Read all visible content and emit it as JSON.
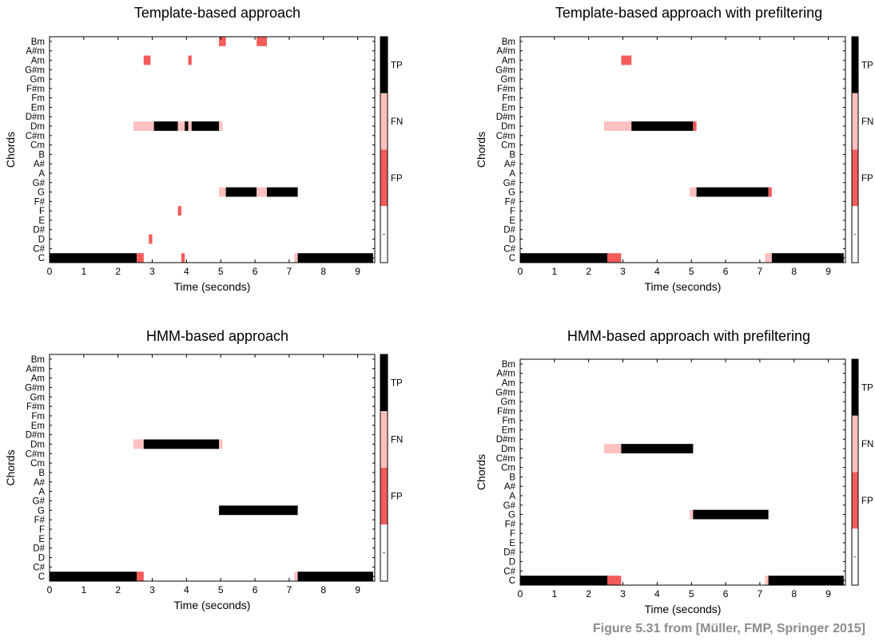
{
  "caption": "Figure 5.31 from [Müller, FMP, Springer 2015]",
  "legend_colors": {
    "TP": "#000000",
    "FN": "#ffc0c0",
    "FP": "#f45b5b",
    "none": "#ffffff"
  },
  "legend_labels": [
    "TP",
    "FN",
    "FP"
  ],
  "chart_data": [
    {
      "type": "heatmap",
      "title": "Template-based approach",
      "xlabel": "Time (seconds)",
      "ylabel": "Chords",
      "xlim": [
        0,
        9.5
      ],
      "xticks": [
        "0",
        "1",
        "2",
        "3",
        "4",
        "5",
        "6",
        "7",
        "8",
        "9"
      ],
      "chords": [
        "C",
        "C#",
        "D",
        "D#",
        "E",
        "F",
        "F#",
        "G",
        "G#",
        "A",
        "A#",
        "B",
        "Cm",
        "C#m",
        "Dm",
        "D#m",
        "Em",
        "Fm",
        "F#m",
        "Gm",
        "G#m",
        "Am",
        "A#m",
        "Bm"
      ],
      "segments": [
        {
          "chord": "C",
          "start": 0.0,
          "end": 2.55,
          "label": "TP"
        },
        {
          "chord": "C",
          "start": 2.55,
          "end": 2.75,
          "label": "FN"
        },
        {
          "chord": "C",
          "start": 2.55,
          "end": 2.75,
          "label": "FP"
        },
        {
          "chord": "C",
          "start": 3.85,
          "end": 3.95,
          "label": "FP"
        },
        {
          "chord": "C",
          "start": 7.15,
          "end": 7.25,
          "label": "FN"
        },
        {
          "chord": "C",
          "start": 7.25,
          "end": 9.45,
          "label": "TP"
        },
        {
          "chord": "D",
          "start": 2.9,
          "end": 3.0,
          "label": "FP"
        },
        {
          "chord": "F",
          "start": 3.75,
          "end": 3.85,
          "label": "FP"
        },
        {
          "chord": "G",
          "start": 4.95,
          "end": 5.15,
          "label": "FN"
        },
        {
          "chord": "G",
          "start": 5.15,
          "end": 6.05,
          "label": "TP"
        },
        {
          "chord": "G",
          "start": 6.05,
          "end": 6.35,
          "label": "FN"
        },
        {
          "chord": "G",
          "start": 6.35,
          "end": 7.25,
          "label": "TP"
        },
        {
          "chord": "Dm",
          "start": 2.45,
          "end": 3.05,
          "label": "FN"
        },
        {
          "chord": "Dm",
          "start": 3.05,
          "end": 3.75,
          "label": "TP"
        },
        {
          "chord": "Dm",
          "start": 3.75,
          "end": 3.95,
          "label": "FN"
        },
        {
          "chord": "Dm",
          "start": 3.95,
          "end": 4.05,
          "label": "TP"
        },
        {
          "chord": "Dm",
          "start": 4.05,
          "end": 4.15,
          "label": "FN"
        },
        {
          "chord": "Dm",
          "start": 4.15,
          "end": 4.95,
          "label": "TP"
        },
        {
          "chord": "Dm",
          "start": 4.95,
          "end": 5.05,
          "label": "FN"
        },
        {
          "chord": "Am",
          "start": 2.75,
          "end": 2.95,
          "label": "FP"
        },
        {
          "chord": "Am",
          "start": 4.05,
          "end": 4.15,
          "label": "FP"
        },
        {
          "chord": "Bm",
          "start": 4.95,
          "end": 5.15,
          "label": "FP"
        },
        {
          "chord": "Bm",
          "start": 6.05,
          "end": 6.35,
          "label": "FP"
        }
      ]
    },
    {
      "type": "heatmap",
      "title": "Template-based approach with prefiltering",
      "xlabel": "Time (seconds)",
      "ylabel": "Chords",
      "xlim": [
        0,
        9.5
      ],
      "xticks": [
        "0",
        "1",
        "2",
        "3",
        "4",
        "5",
        "6",
        "7",
        "8",
        "9"
      ],
      "chords": [
        "C",
        "C#",
        "D",
        "D#",
        "E",
        "F",
        "F#",
        "G",
        "G#",
        "A",
        "A#",
        "B",
        "Cm",
        "C#m",
        "Dm",
        "D#m",
        "Em",
        "Fm",
        "F#m",
        "Gm",
        "G#m",
        "Am",
        "A#m",
        "Bm"
      ],
      "segments": [
        {
          "chord": "C",
          "start": 0.0,
          "end": 2.55,
          "label": "TP"
        },
        {
          "chord": "C",
          "start": 2.55,
          "end": 2.95,
          "label": "FP"
        },
        {
          "chord": "C",
          "start": 7.15,
          "end": 7.35,
          "label": "FN"
        },
        {
          "chord": "C",
          "start": 7.35,
          "end": 9.45,
          "label": "TP"
        },
        {
          "chord": "G",
          "start": 4.95,
          "end": 5.15,
          "label": "FN"
        },
        {
          "chord": "G",
          "start": 5.15,
          "end": 7.25,
          "label": "TP"
        },
        {
          "chord": "G",
          "start": 7.25,
          "end": 7.35,
          "label": "FP"
        },
        {
          "chord": "Dm",
          "start": 2.45,
          "end": 3.25,
          "label": "FN"
        },
        {
          "chord": "Dm",
          "start": 3.25,
          "end": 5.05,
          "label": "TP"
        },
        {
          "chord": "Dm",
          "start": 5.05,
          "end": 5.15,
          "label": "FP"
        },
        {
          "chord": "Am",
          "start": 2.95,
          "end": 3.25,
          "label": "FP"
        }
      ]
    },
    {
      "type": "heatmap",
      "title": "HMM-based approach",
      "xlabel": "Time (seconds)",
      "ylabel": "Chords",
      "xlim": [
        0,
        9.5
      ],
      "xticks": [
        "0",
        "1",
        "2",
        "3",
        "4",
        "5",
        "6",
        "7",
        "8",
        "9"
      ],
      "chords": [
        "C",
        "C#",
        "D",
        "D#",
        "E",
        "F",
        "F#",
        "G",
        "G#",
        "A",
        "A#",
        "B",
        "Cm",
        "C#m",
        "Dm",
        "D#m",
        "Em",
        "Fm",
        "F#m",
        "Gm",
        "G#m",
        "Am",
        "A#m",
        "Bm"
      ],
      "segments": [
        {
          "chord": "C",
          "start": 0.0,
          "end": 2.55,
          "label": "TP"
        },
        {
          "chord": "C",
          "start": 2.55,
          "end": 2.75,
          "label": "FP"
        },
        {
          "chord": "C",
          "start": 7.15,
          "end": 7.25,
          "label": "FN"
        },
        {
          "chord": "C",
          "start": 7.25,
          "end": 9.45,
          "label": "TP"
        },
        {
          "chord": "G",
          "start": 4.95,
          "end": 7.25,
          "label": "TP"
        },
        {
          "chord": "Dm",
          "start": 2.45,
          "end": 2.75,
          "label": "FN"
        },
        {
          "chord": "Dm",
          "start": 2.75,
          "end": 4.95,
          "label": "TP"
        },
        {
          "chord": "Dm",
          "start": 4.95,
          "end": 5.05,
          "label": "FN"
        }
      ]
    },
    {
      "type": "heatmap",
      "title": "HMM-based approach with prefiltering",
      "xlabel": "Time (seconds)",
      "ylabel": "Chords",
      "xlim": [
        0,
        9.5
      ],
      "xticks": [
        "0",
        "1",
        "2",
        "3",
        "4",
        "5",
        "6",
        "7",
        "8",
        "9"
      ],
      "chords": [
        "C",
        "C#",
        "D",
        "D#",
        "E",
        "F",
        "F#",
        "G",
        "G#",
        "A",
        "A#",
        "B",
        "Cm",
        "C#m",
        "Dm",
        "D#m",
        "Em",
        "Fm",
        "F#m",
        "Gm",
        "G#m",
        "Am",
        "A#m",
        "Bm"
      ],
      "segments": [
        {
          "chord": "C",
          "start": 0.0,
          "end": 2.55,
          "label": "TP"
        },
        {
          "chord": "C",
          "start": 2.55,
          "end": 2.95,
          "label": "FP"
        },
        {
          "chord": "C",
          "start": 7.15,
          "end": 7.25,
          "label": "FN"
        },
        {
          "chord": "C",
          "start": 7.25,
          "end": 9.45,
          "label": "TP"
        },
        {
          "chord": "G",
          "start": 4.95,
          "end": 5.05,
          "label": "FN"
        },
        {
          "chord": "G",
          "start": 5.05,
          "end": 7.25,
          "label": "TP"
        },
        {
          "chord": "Dm",
          "start": 2.45,
          "end": 2.95,
          "label": "FN"
        },
        {
          "chord": "Dm",
          "start": 2.95,
          "end": 5.05,
          "label": "TP"
        }
      ]
    }
  ]
}
